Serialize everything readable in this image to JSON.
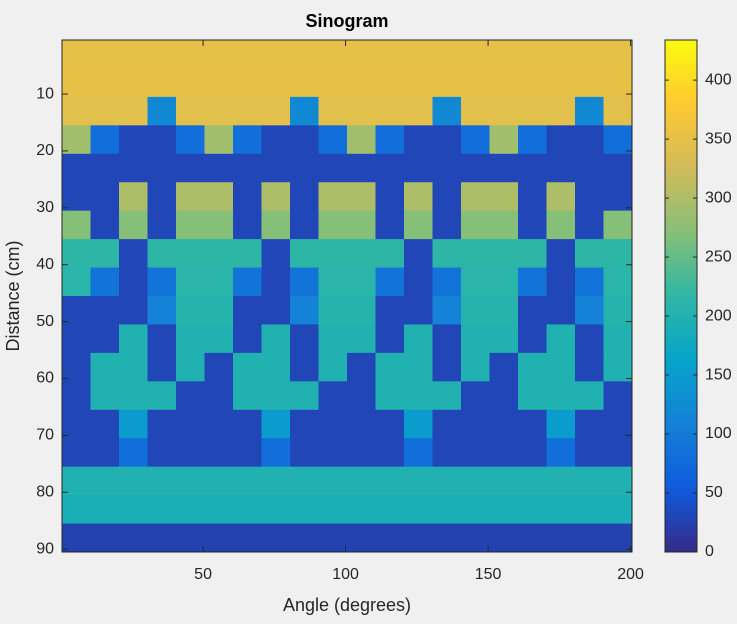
{
  "chart_data": {
    "type": "heatmap",
    "title": "Sinogram",
    "x_label": "Angle (degrees)",
    "y_label": "Distance (cm)",
    "xlim": [
      0.5,
      200.5
    ],
    "ylim": [
      0.5,
      90.5
    ],
    "y_reversed": true,
    "xticks": [
      50,
      100,
      150,
      200
    ],
    "yticks": [
      10,
      20,
      30,
      40,
      50,
      60,
      70,
      80,
      90
    ],
    "colormap": "parula",
    "clim": [
      0,
      434
    ],
    "cticks": [
      0,
      50,
      100,
      150,
      200,
      250,
      300,
      350,
      400
    ],
    "x": [
      5.5,
      15.5,
      25.5,
      35.5,
      45.5,
      55.5,
      65.5,
      75.5,
      85.5,
      95.5,
      105.5,
      115.5,
      125.5,
      135.5,
      145.5,
      155.5,
      165.5,
      175.5,
      185.5,
      195.5
    ],
    "y": [
      3,
      8,
      13,
      18,
      23,
      28,
      33,
      38,
      43,
      48,
      53,
      58,
      63,
      68,
      73,
      78,
      83,
      88
    ],
    "z": [
      [
        350,
        350,
        350,
        350,
        350,
        350,
        350,
        350,
        350,
        350,
        350,
        350,
        350,
        350,
        350,
        350,
        350,
        350,
        350,
        350
      ],
      [
        352,
        352,
        352,
        352,
        352,
        352,
        352,
        352,
        352,
        352,
        352,
        352,
        352,
        352,
        352,
        352,
        352,
        352,
        352,
        352
      ],
      [
        345,
        345,
        345,
        120,
        345,
        345,
        345,
        345,
        120,
        345,
        345,
        345,
        345,
        120,
        345,
        345,
        345,
        345,
        120,
        345
      ],
      [
        290,
        80,
        30,
        30,
        80,
        290,
        80,
        30,
        30,
        80,
        290,
        80,
        30,
        30,
        80,
        290,
        80,
        30,
        30,
        80
      ],
      [
        30,
        30,
        30,
        30,
        30,
        30,
        30,
        30,
        30,
        30,
        30,
        30,
        30,
        30,
        30,
        30,
        30,
        30,
        30,
        30
      ],
      [
        30,
        30,
        300,
        30,
        300,
        300,
        30,
        300,
        30,
        300,
        300,
        30,
        300,
        30,
        300,
        300,
        30,
        300,
        30,
        30
      ],
      [
        270,
        30,
        270,
        30,
        270,
        270,
        30,
        270,
        30,
        270,
        270,
        30,
        270,
        30,
        270,
        270,
        30,
        270,
        30,
        270
      ],
      [
        215,
        215,
        30,
        215,
        215,
        215,
        215,
        30,
        215,
        215,
        215,
        215,
        30,
        215,
        215,
        215,
        215,
        30,
        215,
        215
      ],
      [
        210,
        90,
        30,
        90,
        210,
        210,
        90,
        30,
        90,
        210,
        210,
        90,
        30,
        90,
        210,
        210,
        90,
        30,
        90,
        210
      ],
      [
        30,
        30,
        30,
        110,
        205,
        205,
        30,
        30,
        110,
        205,
        205,
        30,
        30,
        110,
        205,
        205,
        30,
        30,
        110,
        205
      ],
      [
        30,
        30,
        200,
        30,
        200,
        200,
        30,
        200,
        30,
        200,
        200,
        30,
        200,
        30,
        200,
        200,
        30,
        200,
        30,
        200
      ],
      [
        30,
        200,
        200,
        30,
        200,
        30,
        200,
        200,
        30,
        200,
        30,
        200,
        200,
        30,
        200,
        30,
        200,
        200,
        30,
        200
      ],
      [
        30,
        200,
        200,
        200,
        30,
        30,
        200,
        200,
        200,
        30,
        30,
        200,
        200,
        200,
        30,
        30,
        200,
        200,
        200,
        30
      ],
      [
        30,
        30,
        150,
        30,
        30,
        30,
        30,
        150,
        30,
        30,
        30,
        30,
        150,
        30,
        30,
        30,
        30,
        150,
        30,
        30
      ],
      [
        30,
        30,
        80,
        30,
        30,
        30,
        30,
        80,
        30,
        30,
        30,
        30,
        80,
        30,
        30,
        30,
        30,
        80,
        30,
        30
      ],
      [
        200,
        200,
        200,
        200,
        200,
        200,
        200,
        200,
        200,
        200,
        200,
        200,
        200,
        200,
        200,
        200,
        200,
        200,
        200,
        200
      ],
      [
        190,
        190,
        190,
        190,
        190,
        190,
        190,
        190,
        190,
        190,
        190,
        190,
        190,
        190,
        190,
        190,
        190,
        190,
        190,
        190
      ],
      [
        25,
        25,
        25,
        25,
        25,
        25,
        25,
        25,
        25,
        25,
        25,
        25,
        25,
        25,
        25,
        25,
        25,
        25,
        25,
        25
      ]
    ]
  }
}
